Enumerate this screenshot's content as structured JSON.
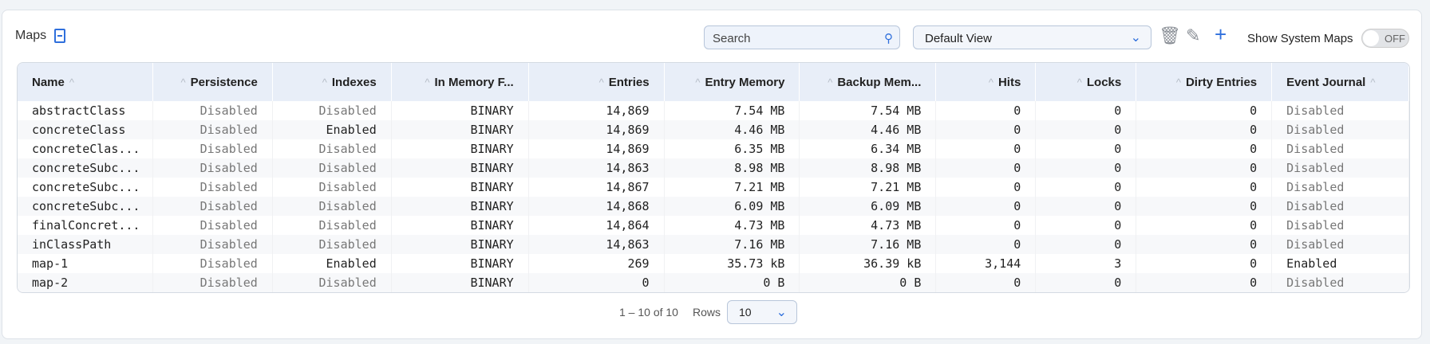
{
  "header": {
    "title": "Maps",
    "search_placeholder": "Search",
    "view": "Default View",
    "show_system": "Show System Maps",
    "toggle": "OFF"
  },
  "columns": [
    "Name",
    "Persistence",
    "Indexes",
    "In Memory F...",
    "Entries",
    "Entry Memory",
    "Backup Mem...",
    "Hits",
    "Locks",
    "Dirty Entries",
    "Event Journal"
  ],
  "rows": [
    [
      "abstractClass",
      "Disabled",
      "Disabled",
      "BINARY",
      "14,869",
      "7.54 MB",
      "7.54 MB",
      "0",
      "0",
      "0",
      "Disabled"
    ],
    [
      "concreteClass",
      "Disabled",
      "Enabled",
      "BINARY",
      "14,869",
      "4.46 MB",
      "4.46 MB",
      "0",
      "0",
      "0",
      "Disabled"
    ],
    [
      "concreteClas...",
      "Disabled",
      "Disabled",
      "BINARY",
      "14,869",
      "6.35 MB",
      "6.34 MB",
      "0",
      "0",
      "0",
      "Disabled"
    ],
    [
      "concreteSubc...",
      "Disabled",
      "Disabled",
      "BINARY",
      "14,863",
      "8.98 MB",
      "8.98 MB",
      "0",
      "0",
      "0",
      "Disabled"
    ],
    [
      "concreteSubc...",
      "Disabled",
      "Disabled",
      "BINARY",
      "14,867",
      "7.21 MB",
      "7.21 MB",
      "0",
      "0",
      "0",
      "Disabled"
    ],
    [
      "concreteSubc...",
      "Disabled",
      "Disabled",
      "BINARY",
      "14,868",
      "6.09 MB",
      "6.09 MB",
      "0",
      "0",
      "0",
      "Disabled"
    ],
    [
      "finalConcret...",
      "Disabled",
      "Disabled",
      "BINARY",
      "14,864",
      "4.73 MB",
      "4.73 MB",
      "0",
      "0",
      "0",
      "Disabled"
    ],
    [
      "inClassPath",
      "Disabled",
      "Disabled",
      "BINARY",
      "14,863",
      "7.16 MB",
      "7.16 MB",
      "0",
      "0",
      "0",
      "Disabled"
    ],
    [
      "map-1",
      "Disabled",
      "Enabled",
      "BINARY",
      "269",
      "35.73 kB",
      "36.39 kB",
      "3,144",
      "3",
      "0",
      "Enabled"
    ],
    [
      "map-2",
      "Disabled",
      "Disabled",
      "BINARY",
      "0",
      "0 B",
      "0 B",
      "0",
      "0",
      "0",
      "Disabled"
    ]
  ],
  "pagination": {
    "range": "1 – 10 of 10",
    "rows_label": "Rows",
    "rows_value": "10"
  }
}
